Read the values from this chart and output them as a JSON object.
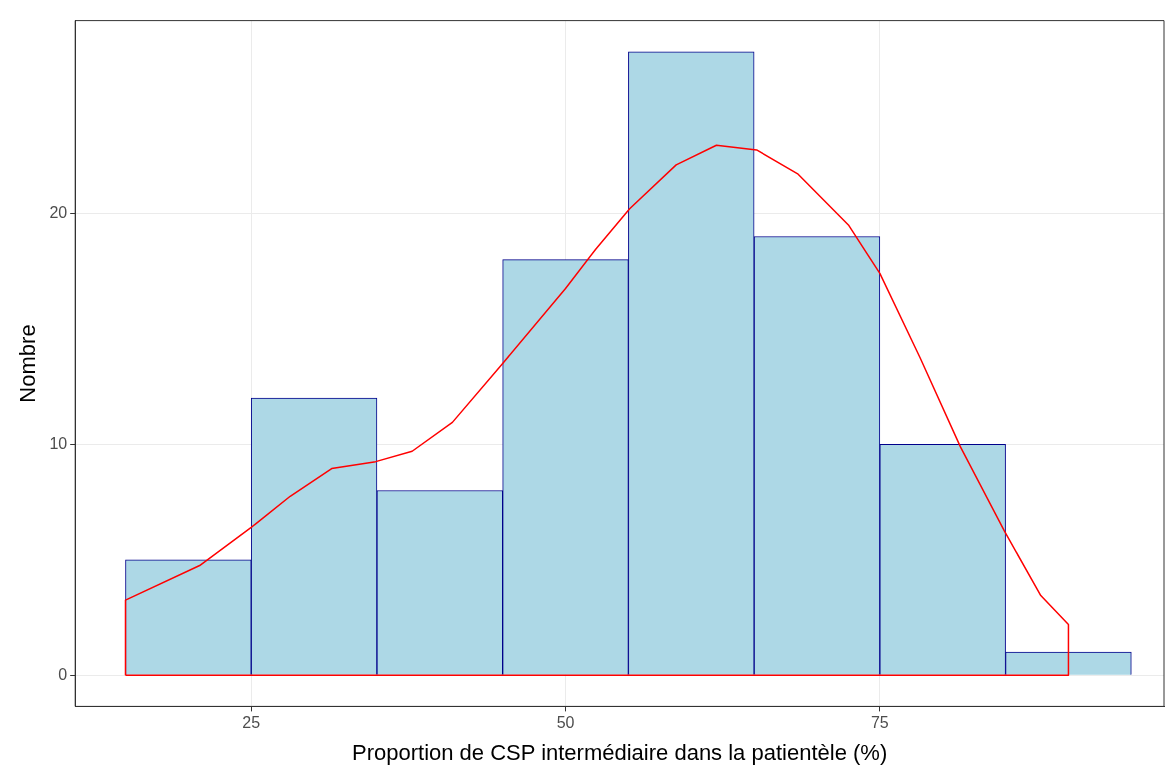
{
  "chart_data": {
    "type": "histogram",
    "xlabel": "Proportion de CSP intermédiaire dans la patientèle (%)",
    "ylabel": "Nombre",
    "bins": [
      15,
      25,
      35,
      45,
      55,
      65,
      75,
      85,
      95
    ],
    "values": [
      5,
      12,
      8,
      18,
      27,
      19,
      10,
      1
    ],
    "color": "#add8e6",
    "series": [
      {
        "type": "line",
        "color": "#ff0000",
        "x": [
          15,
          15,
          20.9,
          25,
          28.1,
          31.4,
          34.9,
          37.8,
          41,
          45,
          50,
          52.4,
          55.1,
          58.8,
          62,
          65.2,
          68.5,
          72.5,
          75,
          78.2,
          81.4,
          84.9,
          87.8,
          90,
          90
        ],
        "values": [
          0,
          3.25,
          4.75,
          6.4,
          7.75,
          8.95,
          9.25,
          9.7,
          10.95,
          13.5,
          16.75,
          18.45,
          20.2,
          22.1,
          22.95,
          22.75,
          21.7,
          19.5,
          17.4,
          13.75,
          9.9,
          6.25,
          3.45,
          2.2,
          0
        ]
      },
      {
        "type": "line",
        "color": "#ff0000",
        "x": [
          15,
          90
        ],
        "values": [
          0,
          0
        ]
      }
    ],
    "xlim": [
      11,
      97.6
    ],
    "ylim": [
      -1.35,
      28.35
    ],
    "xticks": [
      25,
      50,
      75
    ],
    "yticks": [
      0,
      10,
      20
    ],
    "grid": true,
    "legend": false
  }
}
